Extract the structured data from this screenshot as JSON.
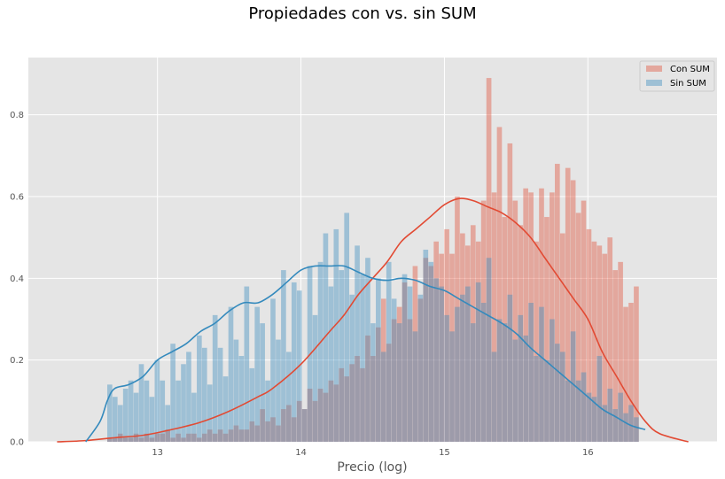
{
  "chart_data": {
    "type": "histogram",
    "title": "Propiedades con vs. sin SUM",
    "xlabel": "Precio (log)",
    "ylabel": "",
    "xlim": [
      12.1,
      16.9
    ],
    "ylim": [
      0,
      0.94
    ],
    "xticks": [
      "13",
      "14",
      "15",
      "16"
    ],
    "yticks": [
      "0.0",
      "0.2",
      "0.4",
      "0.6",
      "0.8"
    ],
    "grid": true,
    "legend": "top-right",
    "colors": {
      "con": "#E24A33",
      "sin": "#348ABD",
      "background": "#E5E5E5"
    },
    "series": [
      {
        "name": "Con SUM",
        "kind": "histogram",
        "bin_start": 12.65,
        "bin_width": 0.0367,
        "values": [
          0.01,
          0.01,
          0.02,
          0.01,
          0.01,
          0.02,
          0.01,
          0.02,
          0.01,
          0.02,
          0.02,
          0.03,
          0.01,
          0.02,
          0.01,
          0.02,
          0.02,
          0.01,
          0.02,
          0.03,
          0.02,
          0.03,
          0.02,
          0.03,
          0.04,
          0.03,
          0.03,
          0.05,
          0.04,
          0.08,
          0.05,
          0.06,
          0.04,
          0.08,
          0.09,
          0.06,
          0.1,
          0.08,
          0.13,
          0.1,
          0.13,
          0.12,
          0.15,
          0.14,
          0.18,
          0.16,
          0.19,
          0.21,
          0.18,
          0.26,
          0.21,
          0.28,
          0.35,
          0.24,
          0.3,
          0.33,
          0.39,
          0.3,
          0.43,
          0.35,
          0.45,
          0.43,
          0.49,
          0.46,
          0.52,
          0.46,
          0.6,
          0.51,
          0.48,
          0.53,
          0.49,
          0.59,
          0.89,
          0.61,
          0.77,
          0.55,
          0.73,
          0.59,
          0.53,
          0.62,
          0.61,
          0.49,
          0.62,
          0.55,
          0.61,
          0.68,
          0.51,
          0.67,
          0.64,
          0.56,
          0.59,
          0.52,
          0.49,
          0.48,
          0.46,
          0.5,
          0.42,
          0.44,
          0.33,
          0.34,
          0.38
        ]
      },
      {
        "name": "Sin SUM",
        "kind": "histogram",
        "bin_start": 12.65,
        "bin_width": 0.0367,
        "values": [
          0.14,
          0.11,
          0.09,
          0.13,
          0.15,
          0.12,
          0.19,
          0.15,
          0.11,
          0.2,
          0.15,
          0.09,
          0.24,
          0.15,
          0.19,
          0.22,
          0.12,
          0.26,
          0.23,
          0.14,
          0.31,
          0.23,
          0.16,
          0.33,
          0.25,
          0.21,
          0.38,
          0.18,
          0.33,
          0.29,
          0.15,
          0.35,
          0.25,
          0.42,
          0.22,
          0.39,
          0.37,
          0.08,
          0.43,
          0.31,
          0.44,
          0.51,
          0.38,
          0.52,
          0.42,
          0.56,
          0.36,
          0.48,
          0.41,
          0.45,
          0.29,
          0.4,
          0.22,
          0.44,
          0.35,
          0.29,
          0.41,
          0.38,
          0.27,
          0.36,
          0.47,
          0.44,
          0.4,
          0.38,
          0.31,
          0.27,
          0.33,
          0.36,
          0.38,
          0.29,
          0.39,
          0.34,
          0.45,
          0.22,
          0.3,
          0.29,
          0.36,
          0.25,
          0.31,
          0.26,
          0.34,
          0.21,
          0.33,
          0.2,
          0.3,
          0.24,
          0.22,
          0.15,
          0.27,
          0.15,
          0.17,
          0.12,
          0.11,
          0.21,
          0.09,
          0.13,
          0.08,
          0.12,
          0.07,
          0.09,
          0.06
        ]
      },
      {
        "name": "Con SUM KDE",
        "kind": "kde",
        "x": [
          12.3,
          12.5,
          12.7,
          12.9,
          13.1,
          13.3,
          13.5,
          13.7,
          13.8,
          14.0,
          14.2,
          14.3,
          14.4,
          14.5,
          14.6,
          14.7,
          14.8,
          14.9,
          15.0,
          15.1,
          15.2,
          15.3,
          15.4,
          15.5,
          15.6,
          15.7,
          15.8,
          15.9,
          16.0,
          16.1,
          16.2,
          16.3,
          16.4,
          16.5,
          16.7
        ],
        "y": [
          0.0,
          0.003,
          0.01,
          0.016,
          0.03,
          0.048,
          0.075,
          0.11,
          0.13,
          0.19,
          0.27,
          0.31,
          0.36,
          0.4,
          0.44,
          0.49,
          0.52,
          0.55,
          0.58,
          0.595,
          0.59,
          0.575,
          0.56,
          0.535,
          0.5,
          0.45,
          0.4,
          0.35,
          0.3,
          0.22,
          0.16,
          0.1,
          0.05,
          0.02,
          0.0
        ]
      },
      {
        "name": "Sin SUM KDE",
        "kind": "kde",
        "x": [
          12.5,
          12.6,
          12.65,
          12.7,
          12.8,
          12.9,
          13.0,
          13.1,
          13.2,
          13.3,
          13.4,
          13.5,
          13.6,
          13.7,
          13.8,
          13.9,
          14.0,
          14.1,
          14.2,
          14.3,
          14.4,
          14.5,
          14.6,
          14.7,
          14.8,
          14.9,
          15.0,
          15.1,
          15.2,
          15.3,
          15.4,
          15.5,
          15.6,
          15.7,
          15.8,
          15.9,
          16.0,
          16.1,
          16.2,
          16.3,
          16.4
        ],
        "y": [
          0.0,
          0.05,
          0.1,
          0.13,
          0.14,
          0.16,
          0.2,
          0.22,
          0.24,
          0.27,
          0.29,
          0.32,
          0.34,
          0.34,
          0.36,
          0.39,
          0.42,
          0.43,
          0.43,
          0.43,
          0.415,
          0.4,
          0.395,
          0.4,
          0.395,
          0.38,
          0.37,
          0.35,
          0.33,
          0.31,
          0.29,
          0.265,
          0.23,
          0.2,
          0.17,
          0.14,
          0.11,
          0.08,
          0.06,
          0.04,
          0.03
        ]
      }
    ]
  }
}
